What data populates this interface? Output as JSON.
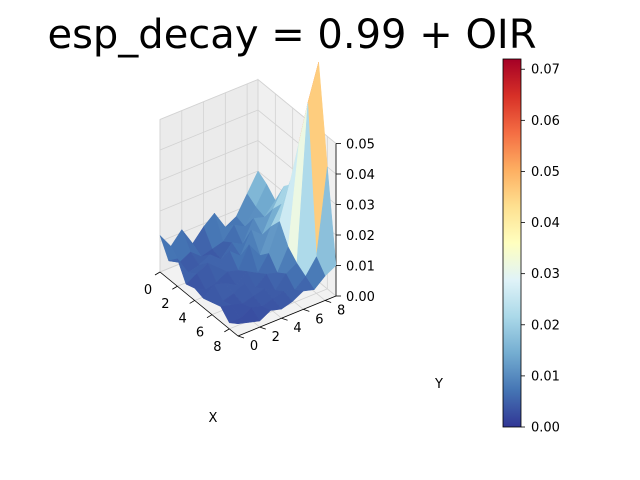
{
  "chart_data": {
    "type": "surface3d",
    "title": "esp_decay = 0.99 + OIR",
    "xlabel": "X",
    "ylabel": "Y",
    "zlabel": "",
    "x": [
      0,
      1,
      2,
      3,
      4,
      5,
      6,
      7,
      8,
      9
    ],
    "y": [
      0,
      1,
      2,
      3,
      4,
      5,
      6,
      7,
      8,
      9
    ],
    "x_ticks": [
      "0",
      "2",
      "4",
      "6",
      "8"
    ],
    "y_ticks": [
      "0",
      "2",
      "4",
      "6",
      "8"
    ],
    "z_ticks": [
      "0.00",
      "0.01",
      "0.02",
      "0.03",
      "0.04",
      "0.05"
    ],
    "zlim": [
      0,
      0.05
    ],
    "colormap": "RdYlBu_r",
    "colorbar": {
      "min": 0,
      "max": 0.072,
      "ticks": [
        "0.00",
        "0.01",
        "0.02",
        "0.03",
        "0.04",
        "0.05",
        "0.06",
        "0.07"
      ]
    },
    "z": [
      [
        0.012,
        0.006,
        0.009,
        0.003,
        0.004,
        0.003,
        0.004,
        0.005,
        0.002,
        0.004
      ],
      [
        0.007,
        0.004,
        0.003,
        0.005,
        0.002,
        0.006,
        0.003,
        0.004,
        0.002,
        0.003
      ],
      [
        0.011,
        0.006,
        0.004,
        0.007,
        0.003,
        0.005,
        0.004,
        0.003,
        0.004,
        0.002
      ],
      [
        0.005,
        0.003,
        0.006,
        0.004,
        0.005,
        0.003,
        0.006,
        0.004,
        0.003,
        0.004
      ],
      [
        0.009,
        0.004,
        0.003,
        0.008,
        0.004,
        0.006,
        0.003,
        0.005,
        0.004,
        0.003
      ],
      [
        0.012,
        0.005,
        0.007,
        0.005,
        0.011,
        0.004,
        0.006,
        0.003,
        0.005,
        0.004
      ],
      [
        0.006,
        0.009,
        0.005,
        0.012,
        0.006,
        0.009,
        0.005,
        0.007,
        0.004,
        0.006
      ],
      [
        0.008,
        0.007,
        0.012,
        0.009,
        0.014,
        0.018,
        0.012,
        0.009,
        0.007,
        0.005
      ],
      [
        0.014,
        0.012,
        0.011,
        0.016,
        0.02,
        0.03,
        0.045,
        0.06,
        0.012,
        0.008
      ],
      [
        0.02,
        0.018,
        0.015,
        0.022,
        0.025,
        0.032,
        0.05,
        0.072,
        0.04,
        0.01
      ]
    ]
  }
}
